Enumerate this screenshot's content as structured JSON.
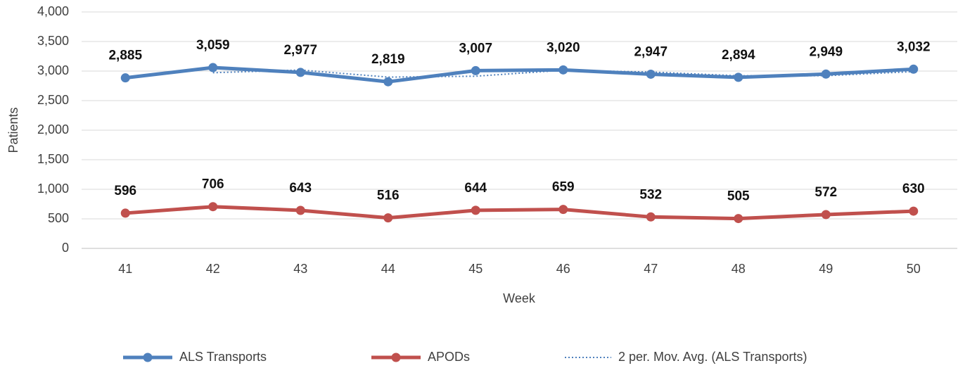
{
  "chart_data": {
    "type": "line",
    "x_label": "Week",
    "y_label": "Patients",
    "categories": [
      "41",
      "42",
      "43",
      "44",
      "45",
      "46",
      "47",
      "48",
      "49",
      "50"
    ],
    "series": [
      {
        "name": "ALS Transports",
        "color": "#4f81bd",
        "style": "solid",
        "markers": true,
        "values": [
          2885,
          3059,
          2977,
          2819,
          3007,
          3020,
          2947,
          2894,
          2949,
          3032
        ],
        "value_labels": [
          "2,885",
          "3,059",
          "2,977",
          "2,819",
          "3,007",
          "3,020",
          "2,947",
          "2,894",
          "2,949",
          "3,032"
        ]
      },
      {
        "name": "APODs",
        "color": "#c0504d",
        "style": "solid",
        "markers": true,
        "values": [
          596,
          706,
          643,
          516,
          644,
          659,
          532,
          505,
          572,
          630
        ],
        "value_labels": [
          "596",
          "706",
          "643",
          "516",
          "644",
          "659",
          "532",
          "505",
          "572",
          "630"
        ]
      },
      {
        "name": "2 per. Mov. Avg. (ALS Transports)",
        "color": "#4f81bd",
        "style": "dotted",
        "markers": false,
        "values": [
          null,
          2972,
          3018,
          2898,
          2913,
          3013.5,
          2983.5,
          2920.5,
          2921.5,
          2990.5
        ]
      }
    ],
    "ylim": [
      0,
      4000
    ],
    "yticks": [
      0,
      500,
      {
        "value": 1000,
        "label": "1,000"
      },
      {
        "value": 1500,
        "label": "1,500"
      },
      {
        "value": 2000,
        "label": "2,000"
      },
      {
        "value": 2500,
        "label": "2,500"
      },
      {
        "value": 3000,
        "label": "3,000"
      },
      {
        "value": 3500,
        "label": "3,500"
      },
      {
        "value": 4000,
        "label": "4,000"
      }
    ],
    "grid": true,
    "legend": "bottom"
  }
}
